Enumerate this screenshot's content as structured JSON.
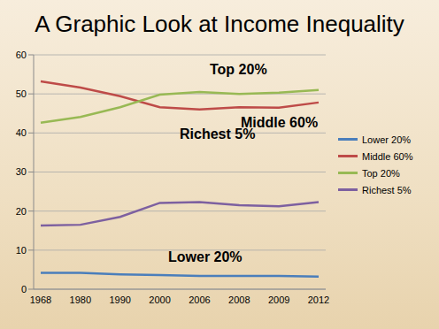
{
  "chart_data": {
    "type": "line",
    "title": "A Graphic Look at Income Inequality",
    "categories": [
      "1968",
      "1980",
      "1990",
      "2000",
      "2006",
      "2008",
      "2009",
      "2012"
    ],
    "series": [
      {
        "name": "Lower 20%",
        "color": "#4a7ebb",
        "values": [
          4.2,
          4.2,
          3.8,
          3.6,
          3.4,
          3.4,
          3.4,
          3.2
        ]
      },
      {
        "name": "Middle 60%",
        "color": "#be4b48",
        "values": [
          53.2,
          51.6,
          49.4,
          46.6,
          46.0,
          46.6,
          46.5,
          47.8
        ]
      },
      {
        "name": "Top 20%",
        "color": "#98b954",
        "values": [
          42.6,
          44.1,
          46.6,
          49.8,
          50.5,
          50.0,
          50.3,
          51.0
        ]
      },
      {
        "name": "Richest 5%",
        "color": "#7d60a0",
        "values": [
          16.3,
          16.5,
          18.5,
          22.1,
          22.3,
          21.5,
          21.2,
          22.3
        ]
      }
    ],
    "ylim": [
      0,
      60
    ],
    "yticks": [
      0,
      10,
      20,
      30,
      40,
      50,
      60
    ],
    "grid": true,
    "legend": "right"
  }
}
